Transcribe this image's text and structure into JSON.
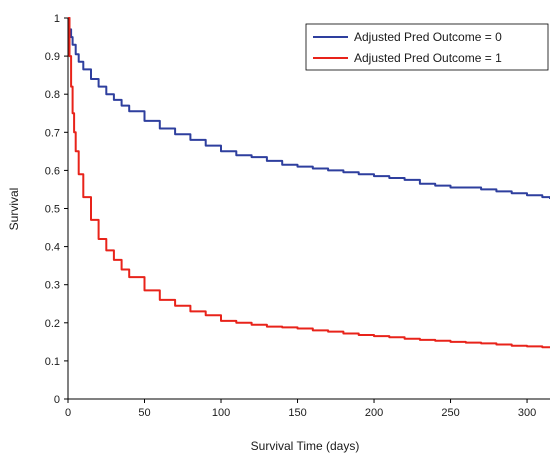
{
  "chart_data": {
    "type": "line",
    "xlabel": "Survival Time (days)",
    "ylabel": "Survival",
    "xlim": [
      0,
      315
    ],
    "ylim": [
      0,
      1
    ],
    "x_ticks": [
      0,
      50,
      100,
      150,
      200,
      250,
      300
    ],
    "y_ticks": [
      0,
      0.1,
      0.2,
      0.3,
      0.4,
      0.5,
      0.6,
      0.7,
      0.8,
      0.9,
      1
    ],
    "grid": false,
    "legend": "top-right",
    "series": [
      {
        "name": "Adjusted Pred Outcome = 0",
        "color": "#2e3f9e",
        "x": [
          0,
          1,
          2,
          3,
          5,
          7,
          10,
          15,
          20,
          25,
          30,
          35,
          40,
          50,
          60,
          70,
          80,
          90,
          100,
          110,
          120,
          130,
          140,
          150,
          160,
          170,
          180,
          190,
          200,
          210,
          220,
          230,
          240,
          250,
          260,
          270,
          280,
          290,
          300,
          310,
          315
        ],
        "y": [
          1.0,
          0.97,
          0.95,
          0.93,
          0.905,
          0.885,
          0.865,
          0.84,
          0.82,
          0.8,
          0.785,
          0.77,
          0.755,
          0.73,
          0.71,
          0.695,
          0.68,
          0.665,
          0.65,
          0.64,
          0.635,
          0.625,
          0.615,
          0.61,
          0.605,
          0.6,
          0.595,
          0.59,
          0.585,
          0.58,
          0.575,
          0.565,
          0.56,
          0.555,
          0.555,
          0.55,
          0.545,
          0.54,
          0.535,
          0.53,
          0.525
        ]
      },
      {
        "name": "Adjusted Pred Outcome = 1",
        "color": "#e8231a",
        "x": [
          0,
          1,
          2,
          3,
          4,
          5,
          7,
          10,
          15,
          20,
          25,
          30,
          35,
          40,
          50,
          60,
          70,
          80,
          90,
          100,
          110,
          120,
          130,
          140,
          150,
          160,
          170,
          180,
          190,
          200,
          210,
          220,
          230,
          240,
          250,
          260,
          270,
          280,
          290,
          300,
          310,
          315
        ],
        "y": [
          1.0,
          0.9,
          0.82,
          0.75,
          0.7,
          0.65,
          0.59,
          0.53,
          0.47,
          0.42,
          0.39,
          0.365,
          0.34,
          0.32,
          0.285,
          0.26,
          0.245,
          0.23,
          0.22,
          0.205,
          0.2,
          0.195,
          0.19,
          0.188,
          0.185,
          0.18,
          0.177,
          0.172,
          0.168,
          0.165,
          0.162,
          0.158,
          0.155,
          0.153,
          0.15,
          0.148,
          0.146,
          0.143,
          0.14,
          0.138,
          0.136,
          0.135
        ]
      }
    ]
  }
}
